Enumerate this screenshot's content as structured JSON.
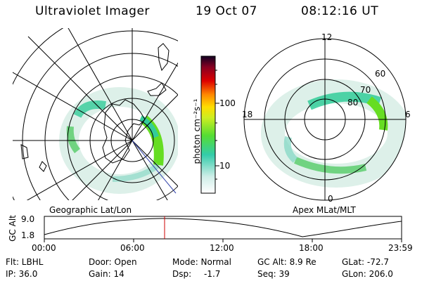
{
  "header": {
    "instrument": "Ultraviolet Imager",
    "date": "19 Oct 07",
    "time": "08:12:16 UT"
  },
  "colorbar": {
    "unit_label": "photon cm⁻²s⁻¹",
    "ticks": [
      "100",
      "10"
    ]
  },
  "left_panel": {
    "caption": "Geographic Lat/Lon"
  },
  "right_panel": {
    "caption": "Apex MLat/MLT",
    "mlt_labels": {
      "top": "12",
      "left": "18",
      "right": "6",
      "bottom": "0"
    },
    "lat_labels": [
      "80",
      "70",
      "60"
    ]
  },
  "timeline": {
    "ylabel": "GC Alt",
    "yticks": [
      "9.0",
      "1.8"
    ],
    "xticks": [
      "00:00",
      "06:00",
      "12:00",
      "18:00",
      "23:59"
    ],
    "current_time": "08:12"
  },
  "info": {
    "flt": "Flt: LBHL",
    "ip": "IP: 36.0",
    "door": "Door: Open",
    "gain": "Gain: 14",
    "mode": "Mode: Normal",
    "dsp_label": "Dsp:",
    "dsp_value": "-1.7",
    "gcalt": "GC Alt: 8.9 Re",
    "seq": "Seq: 39",
    "glat": "GLat: -72.7",
    "glon": "GLon: 206.0"
  },
  "colors": {
    "grid": "#000000",
    "marker": "#cc0000",
    "aurora_dim": "#bfe3d8",
    "aurora_mid": "#33cc99",
    "aurora_bright": "#66dd22"
  }
}
